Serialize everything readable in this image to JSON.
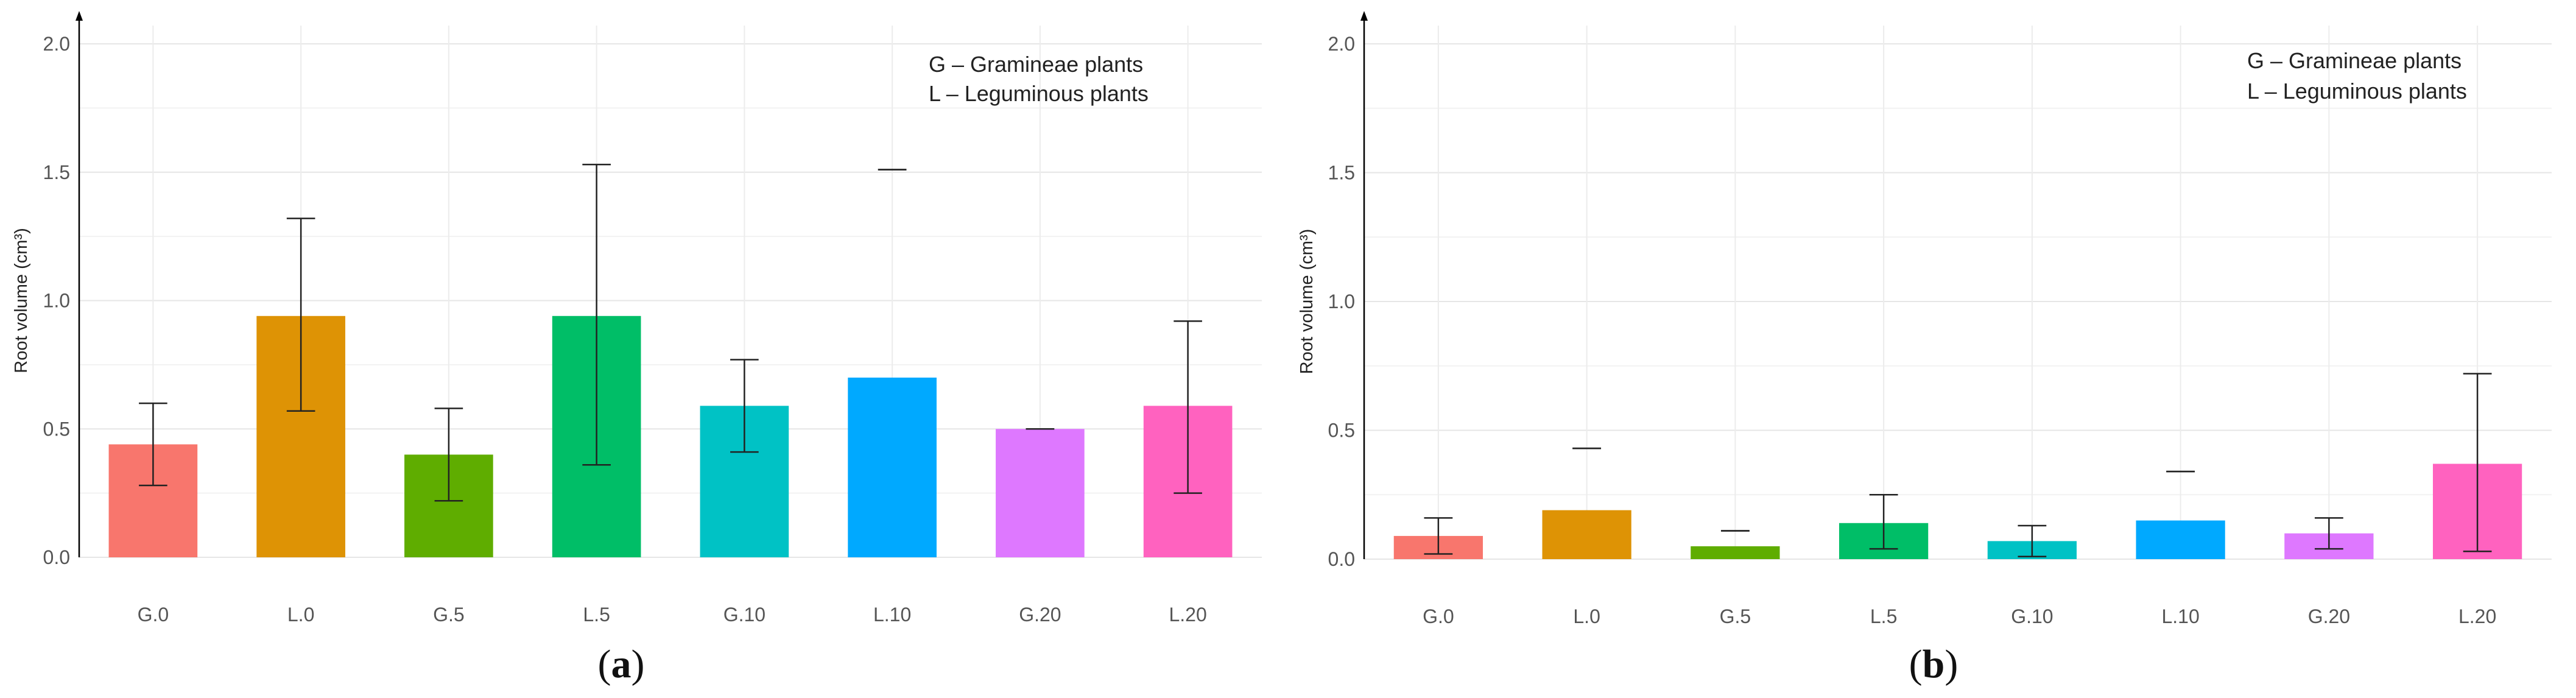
{
  "chart_data": [
    {
      "type": "bar",
      "panel_label": {
        "open": "(",
        "letter": "a",
        "close": ")"
      },
      "ylabel": "Root volume (cm³)",
      "xlabel": "",
      "ylim": [
        0,
        2.0
      ],
      "yticks": [
        "0.0",
        "0.5",
        "1.0",
        "1.5",
        "2.0"
      ],
      "ytick_values": [
        0,
        0.5,
        1.0,
        1.5,
        2.0
      ],
      "grid": true,
      "legend_position": "top-right",
      "legend": [
        "G – Gramineae plants",
        "L – Leguminous plants"
      ],
      "categories": [
        "G.0",
        "L.0",
        "G.5",
        "L.5",
        "G.10",
        "L.10",
        "G.20",
        "L.20"
      ],
      "values": [
        0.44,
        0.94,
        0.4,
        0.94,
        0.59,
        0.7,
        0.5,
        0.59
      ],
      "error_low": [
        0.28,
        0.57,
        0.22,
        0.36,
        0.41,
        1.51,
        0.5,
        0.25
      ],
      "error_high": [
        0.6,
        1.32,
        0.58,
        1.53,
        0.77,
        1.51,
        0.5,
        0.92
      ],
      "colors": [
        "#f8766d",
        "#de9305",
        "#5fad00",
        "#00be67",
        "#00c2c5",
        "#00a9ff",
        "#de78ff",
        "#ff62bf"
      ]
    },
    {
      "type": "bar",
      "panel_label": {
        "open": "(",
        "letter": "b",
        "close": ")"
      },
      "ylabel": "Root volume (cm³)",
      "xlabel": "",
      "ylim": [
        0,
        2.0
      ],
      "yticks": [
        "0.0",
        "0.5",
        "1.0",
        "1.5",
        "2.0"
      ],
      "ytick_values": [
        0,
        0.5,
        1.0,
        1.5,
        2.0
      ],
      "grid": true,
      "legend_position": "top-right",
      "legend": [
        "G – Gramineae plants",
        "L – Leguminous plants"
      ],
      "categories": [
        "G.0",
        "L.0",
        "G.5",
        "L.5",
        "G.10",
        "L.10",
        "G.20",
        "L.20"
      ],
      "values": [
        0.09,
        0.19,
        0.05,
        0.14,
        0.07,
        0.15,
        0.1,
        0.37
      ],
      "error_low": [
        0.02,
        0.43,
        0.11,
        0.04,
        0.01,
        0.34,
        0.04,
        0.03
      ],
      "error_high": [
        0.16,
        0.43,
        0.11,
        0.25,
        0.13,
        0.34,
        0.16,
        0.72
      ],
      "colors": [
        "#f8766d",
        "#de9305",
        "#5fad00",
        "#00be67",
        "#00c2c5",
        "#00a9ff",
        "#de78ff",
        "#ff62bf"
      ]
    }
  ]
}
